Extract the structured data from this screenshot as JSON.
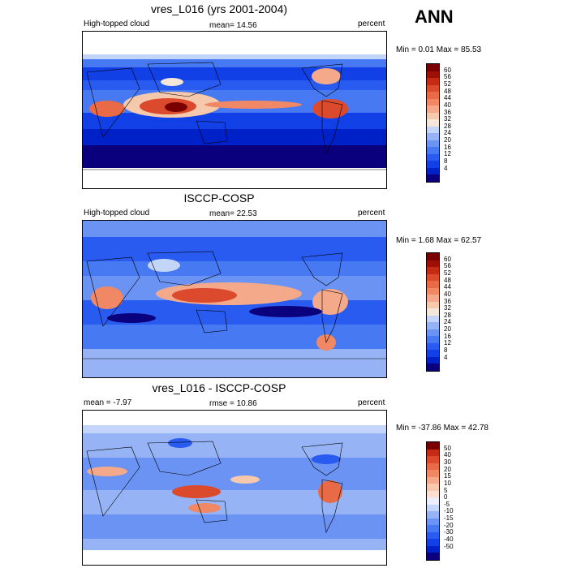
{
  "corner_label": "ANN",
  "palettes": {
    "abs": [
      "#0a007d",
      "#0020c8",
      "#1040e6",
      "#2a5bf0",
      "#4679f2",
      "#6b93f3",
      "#96b4f5",
      "#c3d6f9",
      "#f5e6da",
      "#f6c9ad",
      "#f4a98a",
      "#f08866",
      "#e86a47",
      "#dc4a2d",
      "#c52b14",
      "#9e0f06",
      "#7a0000"
    ],
    "diff": [
      "#0a007d",
      "#0020c8",
      "#1040e6",
      "#2a5bf0",
      "#4679f2",
      "#6b93f3",
      "#96b4f5",
      "#c3d6f9",
      "#eeeefa",
      "#fbe0d2",
      "#f6c9ad",
      "#f4a98a",
      "#f08866",
      "#e86a47",
      "#dc4a2d",
      "#c52b14",
      "#7a0000"
    ]
  },
  "panels": [
    {
      "title": "vres_L016 (yrs 2001-2004)",
      "left_label": "High-topped cloud",
      "mid_label": "mean=  14.56",
      "right_label": "percent",
      "minmax": "Min =   0.01 Max =  85.53",
      "levels": [
        "60",
        "56",
        "52",
        "48",
        "44",
        "40",
        "36",
        "32",
        "28",
        "24",
        "20",
        "16",
        "12",
        "8",
        "4"
      ],
      "palette": "abs"
    },
    {
      "title": "ISCCP-COSP",
      "left_label": "High-topped cloud",
      "mid_label": "mean=  22.53",
      "right_label": "percent",
      "minmax": "Min =   1.68 Max =  62.57",
      "levels": [
        "60",
        "56",
        "52",
        "48",
        "44",
        "40",
        "36",
        "32",
        "28",
        "24",
        "20",
        "16",
        "12",
        "8",
        "4"
      ],
      "palette": "abs"
    },
    {
      "title": "vres_L016 - ISCCP-COSP",
      "left_label": "mean =  -7.97",
      "mid_label": "rmse =  10.86",
      "right_label": "percent",
      "minmax": "Min = -37.86 Max =  42.78",
      "levels": [
        "50",
        "40",
        "30",
        "20",
        "15",
        "10",
        "5",
        "0",
        "-5",
        "-10",
        "-15",
        "-20",
        "-30",
        "-40",
        "-50"
      ],
      "palette": "diff"
    }
  ]
}
